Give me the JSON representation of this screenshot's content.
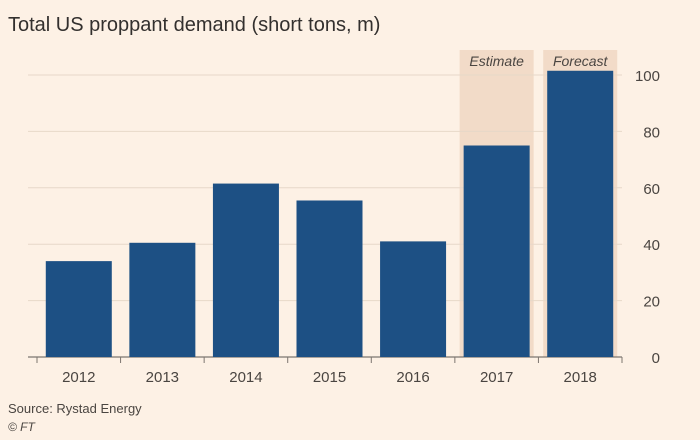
{
  "chart_data": {
    "type": "bar",
    "title": "Total US proppant demand (short tons, m)",
    "categories": [
      "2012",
      "2013",
      "2014",
      "2015",
      "2016",
      "2017",
      "2018"
    ],
    "values": [
      34,
      40.5,
      61.5,
      55.5,
      41,
      75,
      101.5
    ],
    "ylim": [
      0,
      105
    ],
    "yticks": [
      0,
      20,
      40,
      60,
      80,
      100
    ],
    "xlabel": "",
    "ylabel": "",
    "grid": true,
    "y_axis_side": "right",
    "bar_color": "#1d5084",
    "highlight_color": "#f2dbc8",
    "annotations": [
      {
        "category": "2017",
        "label": "Estimate"
      },
      {
        "category": "2018",
        "label": "Forecast"
      }
    ]
  },
  "footer": {
    "source": "Source: Rystad Energy",
    "credit": "© FT"
  }
}
